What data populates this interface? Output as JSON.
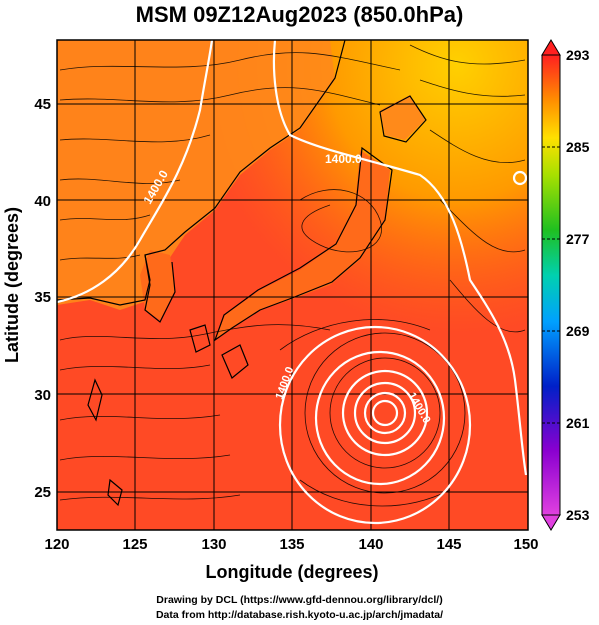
{
  "title": "MSM 09Z12Aug2023 (850.0hPa)",
  "xlabel": "Longitude (degrees)",
  "ylabel": "Latitude  (degrees)",
  "xticks": [
    "120",
    "125",
    "130",
    "135",
    "140",
    "145",
    "150"
  ],
  "yticks": [
    "45",
    "40",
    "35",
    "30",
    "25"
  ],
  "colorbar_ticks": [
    "293",
    "285",
    "277",
    "269",
    "261",
    "253"
  ],
  "contour_labels": [
    "1400.0",
    "1400.0",
    "1400.0",
    "1400.0"
  ],
  "credits": {
    "line1": "Drawing by DCL (https://www.gfd-dennou.org/library/dcl/)",
    "line2": "Data from http://database.rish.kyoto-u.ac.jp/arch/jmadata/"
  },
  "colors": {
    "ocean": "#ff4422",
    "land_warm": "#ff7a1a",
    "north_cool": "#ffb300",
    "contour": "#ffffff",
    "coast": "#000000"
  }
}
